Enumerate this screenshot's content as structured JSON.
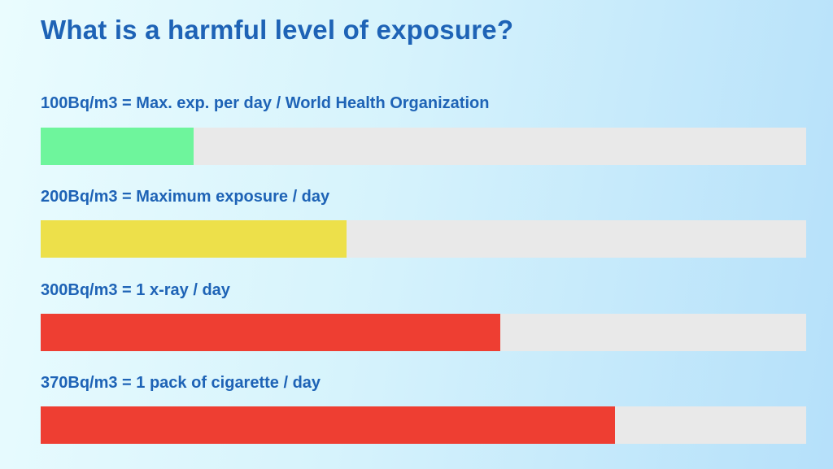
{
  "title": "What is a harmful level of exposure?",
  "levels": [
    {
      "label": "100Bq/m3 = Max. exp. per day / World Health Organization",
      "value": 0.2,
      "color": "#6ef59c"
    },
    {
      "label": "200Bq/m3 = Maximum exposure / day",
      "value": 0.4,
      "color": "#ede04a"
    },
    {
      "label": "300Bq/m3 = 1 x-ray / day",
      "value": 0.6,
      "color": "#ee3e32"
    },
    {
      "label": "370Bq/m3 = 1 pack of cigarette / day",
      "value": 0.75,
      "color": "#ee3e32"
    }
  ]
}
